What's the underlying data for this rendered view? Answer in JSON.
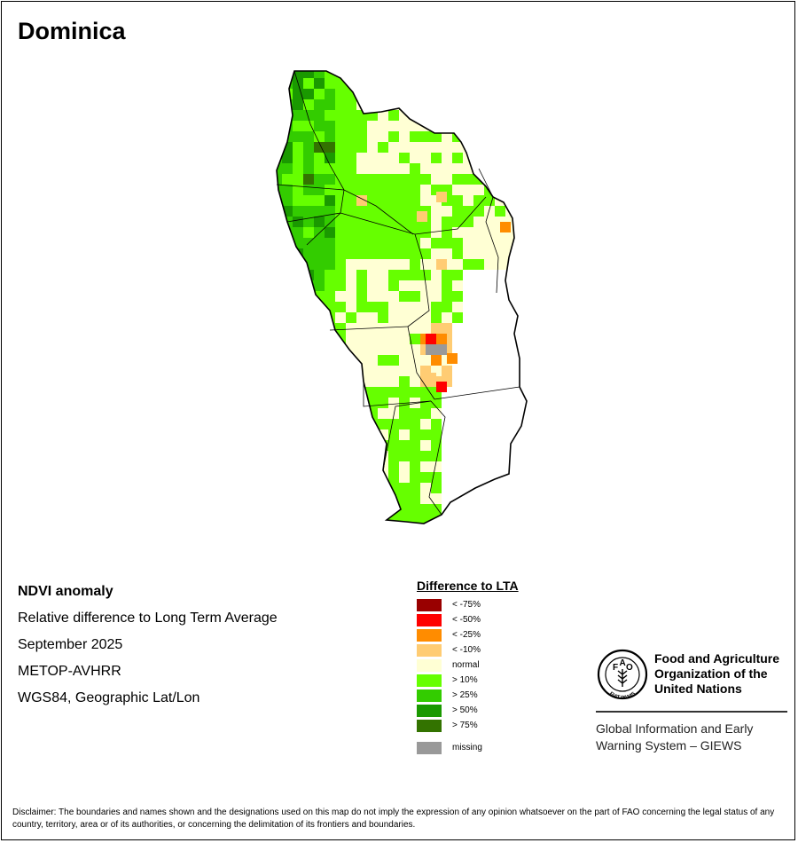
{
  "map": {
    "title": "Dominica",
    "info_lines": [
      "NDVI anomaly",
      "Relative difference to Long Term Average",
      "September 2025",
      "METOP-AVHRR",
      "WGS84, Geographic Lat/Lon"
    ]
  },
  "legend": {
    "title": "Difference to LTA",
    "items": [
      {
        "label": "< -75%",
        "color": "#990000"
      },
      {
        "label": "< -50%",
        "color": "#ff0000"
      },
      {
        "label": "< -25%",
        "color": "#ff8c00"
      },
      {
        "label": "< -10%",
        "color": "#ffcc73"
      },
      {
        "label": "normal",
        "color": "#ffffd4"
      },
      {
        "label": "> 10%",
        "color": "#66ff00"
      },
      {
        "label": "> 25%",
        "color": "#33cc00"
      },
      {
        "label": "> 50%",
        "color": "#1a9900"
      },
      {
        "label": "> 75%",
        "color": "#337300"
      }
    ],
    "missing": {
      "label": "missing",
      "color": "#999999"
    }
  },
  "logo": {
    "org_name": "Food and Agriculture Organization of the United Nations",
    "seal_text": "FIAT PANIS",
    "program": "Global Information and Early Warning System – GIEWS"
  },
  "disclaimer": "Disclaimer: The boundaries and names shown and the designations used on this map do not imply the expression of any opinion whatsoever on the part of FAO concerning the legal status of any country, territory, area or of its authorities, or concerning the delimitation of its frontiers and boundaries."
}
